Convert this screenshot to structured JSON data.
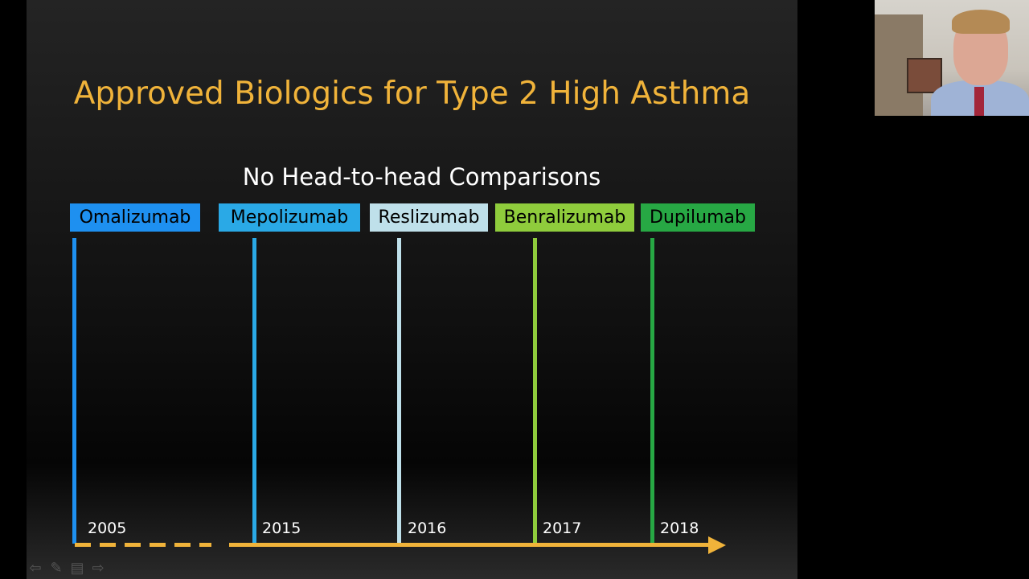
{
  "slide": {
    "title": "Approved Biologics for Type 2 High Asthma",
    "subtitle": "No Head-to-head Comparisons",
    "drugs": [
      {
        "name": "Omalizumab",
        "year": "2005",
        "color": "#1e90f0"
      },
      {
        "name": "Mepolizumab",
        "year": "2015",
        "color": "#2aa9e6"
      },
      {
        "name": "Reslizumab",
        "year": "2016",
        "color": "#bfe0ea"
      },
      {
        "name": "Benralizumab",
        "year": "2017",
        "color": "#8fcc3c"
      },
      {
        "name": "Dupilumab",
        "year": "2018",
        "color": "#27a844"
      }
    ],
    "axis_color": "#f0b33a"
  },
  "controls": {
    "icons": [
      "previous-slide-icon",
      "pen-icon",
      "slide-menu-icon",
      "next-slide-icon"
    ]
  }
}
